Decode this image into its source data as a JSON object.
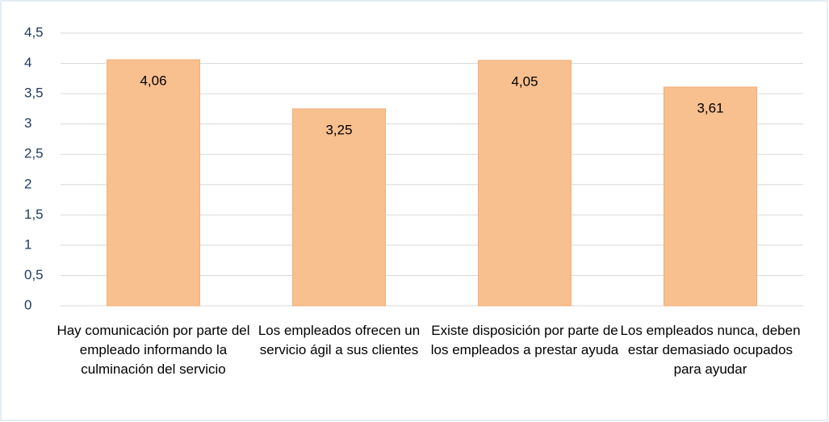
{
  "chart_data": {
    "type": "bar",
    "categories": [
      "Hay comunicación por parte del empleado informando la culminación del servicio",
      "Los empleados ofrecen un servicio ágil a sus clientes",
      "Existe disposición por parte de los empleados a prestar ayuda",
      "Los empleados nunca, deben estar demasiado ocupados para ayudar"
    ],
    "values": [
      4.06,
      3.25,
      4.05,
      3.61
    ],
    "value_labels": [
      "4,06",
      "3,25",
      "4,05",
      "3,61"
    ],
    "color": "#f8bf8f",
    "ylim": [
      0,
      4.5
    ],
    "yticks": [
      0,
      {
        "value": 0.5,
        "label": "0,5"
      },
      1,
      {
        "value": 1.5,
        "label": "1,5"
      },
      2,
      {
        "value": 2.5,
        "label": "2,5"
      },
      3,
      {
        "value": 3.5,
        "label": "3,5"
      },
      4,
      {
        "value": 4.5,
        "label": "4,5"
      }
    ],
    "grid": true
  }
}
